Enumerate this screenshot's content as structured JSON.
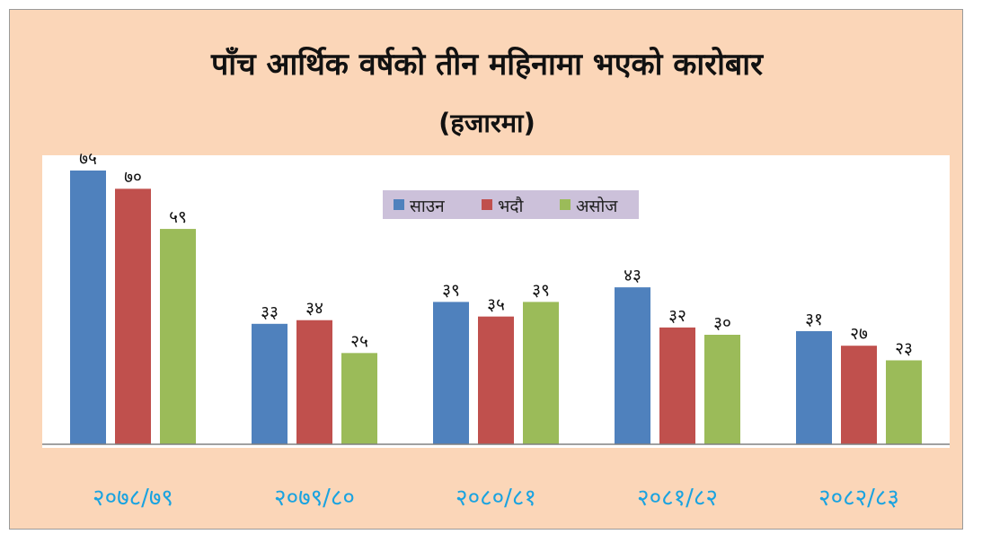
{
  "chart_data": {
    "type": "bar",
    "title": "पाँच आर्थिक वर्षको तीन महिनामा भएको कारोबार",
    "subtitle": "(हजारमा)",
    "categories": [
      "२०७८/७९",
      "२०७९/८०",
      "२०८०/८१",
      "२०८१/८२",
      "२०८२/८३"
    ],
    "series": [
      {
        "name": "साउन",
        "color": "#4f81bd",
        "values": [
          75,
          33,
          39,
          43,
          31
        ],
        "labels": [
          "७५",
          "३३",
          "३९",
          "४३",
          "३१"
        ]
      },
      {
        "name": "भदौ",
        "color": "#c0504d",
        "values": [
          70,
          34,
          35,
          32,
          27
        ],
        "labels": [
          "७०",
          "३४",
          "३५",
          "३२",
          "२७"
        ]
      },
      {
        "name": "असोज",
        "color": "#9bbb59",
        "values": [
          59,
          25,
          39,
          30,
          23
        ],
        "labels": [
          "५९",
          "२५",
          "३९",
          "३०",
          "२३"
        ]
      }
    ],
    "ylim": [
      0,
      75
    ],
    "grid": false,
    "legend_position": "top-center",
    "category_label_color": "#1aa3e0",
    "frame_background": "#fbd6b8",
    "plot_background": "#ffffff",
    "legend_background": "#ccc1da"
  }
}
